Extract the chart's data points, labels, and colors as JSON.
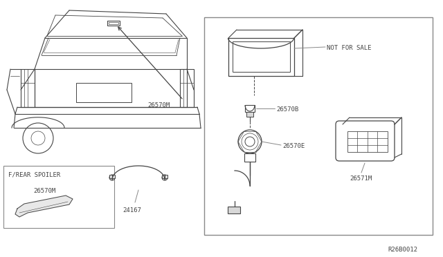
{
  "bg_color": "#ffffff",
  "line_color": "#444444",
  "text_color": "#444444",
  "leader_color": "#888888",
  "border_color": "#888888",
  "ref_code": "R26B0012",
  "labels": {
    "26570M_car": "26570M",
    "26570B": "26570B",
    "26570E": "26570E",
    "26571M": "26571M",
    "24167": "24167",
    "26570M_spoiler": "26570M",
    "not_for_sale": "NOT FOR SALE",
    "f_rear_spoiler": "F/REAR SPOILER"
  }
}
